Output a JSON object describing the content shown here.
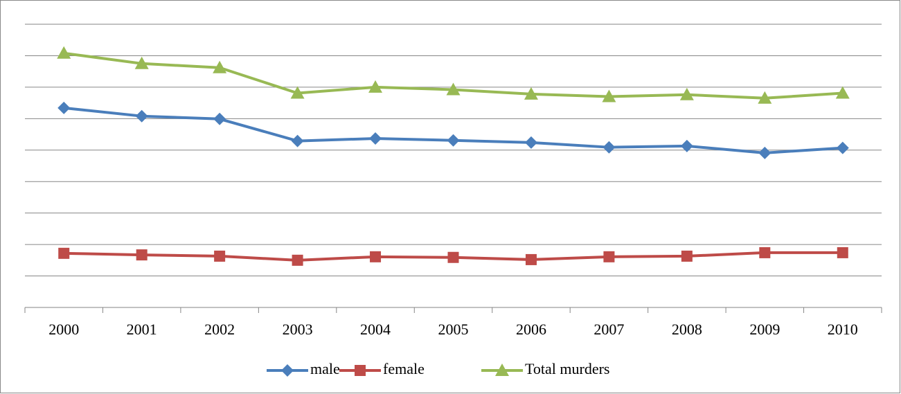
{
  "chart_data": {
    "type": "line",
    "categories": [
      "2000",
      "2001",
      "2002",
      "2003",
      "2004",
      "2005",
      "2006",
      "2007",
      "2008",
      "2009",
      "2010"
    ],
    "series": [
      {
        "name": "male",
        "color": "#4a7ebb",
        "marker": "diamond",
        "values": [
          6.34,
          6.08,
          5.99,
          5.29,
          5.37,
          5.31,
          5.24,
          5.09,
          5.13,
          4.91,
          5.07
        ]
      },
      {
        "name": "female",
        "color": "#be4b48",
        "marker": "square",
        "values": [
          1.72,
          1.67,
          1.63,
          1.5,
          1.61,
          1.59,
          1.52,
          1.61,
          1.63,
          1.74,
          1.74
        ]
      },
      {
        "name": "Total murders",
        "color": "#98b954",
        "marker": "triangle",
        "values": [
          8.08,
          7.75,
          7.62,
          6.81,
          7.0,
          6.92,
          6.78,
          6.7,
          6.76,
          6.65,
          6.81
        ]
      }
    ],
    "ylim": [
      0,
      9
    ],
    "yticks": [
      0,
      1,
      2,
      3,
      4,
      5,
      6,
      7,
      8,
      9
    ],
    "grid": true,
    "legend": "bottom"
  }
}
